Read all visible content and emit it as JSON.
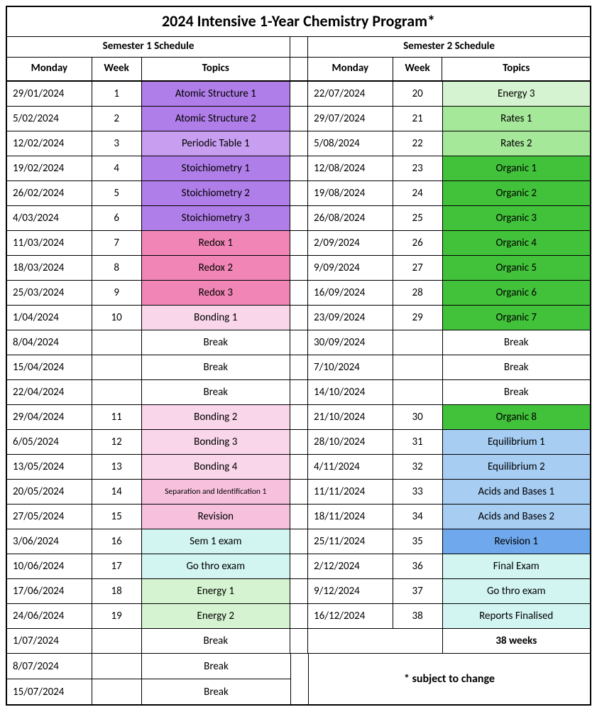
{
  "title": "2024 Intensive 1-Year Chemistry Program*",
  "sem1_header": "Semester 1 Schedule",
  "sem2_header": "Semester 2 Schedule",
  "columns": {
    "monday": "Monday",
    "week": "Week",
    "topics": "Topics"
  },
  "colors": {
    "purple_dark": "#b07ee8",
    "purple_med": "#c89ff0",
    "pink_dark": "#f186b6",
    "pink_med": "#f7c1de",
    "pink_light": "#f9d6ea",
    "cyan_light": "#d2f5f2",
    "green_pale": "#d5f3d0",
    "green_light": "#a6e89a",
    "green_med": "#6fd95a",
    "green_dark": "#42c23a",
    "blue_light": "#a7cdf3",
    "blue_med": "#6fa8ec",
    "white": "#ffffff"
  },
  "sem1": [
    {
      "date": "29/01/2024",
      "week": "1",
      "topic": "Atomic Structure 1",
      "color": "purple_dark"
    },
    {
      "date": "5/02/2024",
      "week": "2",
      "topic": "Atomic Structure  2",
      "color": "purple_dark"
    },
    {
      "date": "12/02/2024",
      "week": "3",
      "topic": "Periodic Table 1",
      "color": "purple_med"
    },
    {
      "date": "19/02/2024",
      "week": "4",
      "topic": "Stoichiometry 1",
      "color": "purple_dark"
    },
    {
      "date": "26/02/2024",
      "week": "5",
      "topic": "Stoichiometry 2",
      "color": "purple_dark"
    },
    {
      "date": "4/03/2024",
      "week": "6",
      "topic": "Stoichiometry 3",
      "color": "purple_dark"
    },
    {
      "date": "11/03/2024",
      "week": "7",
      "topic": "Redox 1",
      "color": "pink_dark"
    },
    {
      "date": "18/03/2024",
      "week": "8",
      "topic": "Redox 2",
      "color": "pink_dark"
    },
    {
      "date": "25/03/2024",
      "week": "9",
      "topic": "Redox 3",
      "color": "pink_dark"
    },
    {
      "date": "1/04/2024",
      "week": "10",
      "topic": "Bonding 1",
      "color": "pink_light"
    },
    {
      "date": "8/04/2024",
      "week": "",
      "topic": "Break",
      "color": "white"
    },
    {
      "date": "15/04/2024",
      "week": "",
      "topic": "Break",
      "color": "white"
    },
    {
      "date": "22/04/2024",
      "week": "",
      "topic": "Break",
      "color": "white"
    },
    {
      "date": "29/04/2024",
      "week": "11",
      "topic": "Bonding 2",
      "color": "pink_light"
    },
    {
      "date": "6/05/2024",
      "week": "12",
      "topic": "Bonding 3",
      "color": "pink_light"
    },
    {
      "date": "13/05/2024",
      "week": "13",
      "topic": "Bonding 4",
      "color": "pink_light"
    },
    {
      "date": "20/05/2024",
      "week": "14",
      "topic": "Separation and Identification 1",
      "color": "pink_med",
      "small": true
    },
    {
      "date": "27/05/2024",
      "week": "15",
      "topic": "Revision",
      "color": "pink_med"
    },
    {
      "date": "3/06/2024",
      "week": "16",
      "topic": "Sem 1 exam",
      "color": "cyan_light"
    },
    {
      "date": "10/06/2024",
      "week": "17",
      "topic": "Go thro exam",
      "color": "cyan_light"
    },
    {
      "date": "17/06/2024",
      "week": "18",
      "topic": "Energy 1",
      "color": "green_pale"
    },
    {
      "date": "24/06/2024",
      "week": "19",
      "topic": "Energy 2",
      "color": "green_pale"
    },
    {
      "date": "1/07/2024",
      "week": "",
      "topic": "Break",
      "color": "white"
    },
    {
      "date": "8/07/2024",
      "week": "",
      "topic": "Break",
      "color": "white"
    },
    {
      "date": "15/07/2024",
      "week": "",
      "topic": "Break",
      "color": "white"
    }
  ],
  "sem2": [
    {
      "date": "22/07/2024",
      "week": "20",
      "topic": "Energy 3",
      "color": "green_pale"
    },
    {
      "date": "29/07/2024",
      "week": "21",
      "topic": "Rates 1",
      "color": "green_light"
    },
    {
      "date": "5/08/2024",
      "week": "22",
      "topic": "Rates 2",
      "color": "green_light"
    },
    {
      "date": "12/08/2024",
      "week": "23",
      "topic": "Organic 1",
      "color": "green_dark"
    },
    {
      "date": "19/08/2024",
      "week": "24",
      "topic": "Organic 2",
      "color": "green_dark"
    },
    {
      "date": "26/08/2024",
      "week": "25",
      "topic": "Organic 3",
      "color": "green_dark"
    },
    {
      "date": "2/09/2024",
      "week": "26",
      "topic": "Organic 4",
      "color": "green_dark"
    },
    {
      "date": "9/09/2024",
      "week": "27",
      "topic": "Organic 5",
      "color": "green_dark"
    },
    {
      "date": "16/09/2024",
      "week": "28",
      "topic": "Organic 6",
      "color": "green_dark"
    },
    {
      "date": "23/09/2024",
      "week": "29",
      "topic": "Organic 7",
      "color": "green_dark"
    },
    {
      "date": "30/09/2024",
      "week": "",
      "topic": "Break",
      "color": "white"
    },
    {
      "date": "7/10/2024",
      "week": "",
      "topic": "Break",
      "color": "white"
    },
    {
      "date": "14/10/2024",
      "week": "",
      "topic": "Break",
      "color": "white"
    },
    {
      "date": "21/10/2024",
      "week": "30",
      "topic": "Organic 8",
      "color": "green_dark"
    },
    {
      "date": "28/10/2024",
      "week": "31",
      "topic": "Equilibrium 1",
      "color": "blue_light"
    },
    {
      "date": "4/11/2024",
      "week": "32",
      "topic": "Equilibrium 2",
      "color": "blue_light"
    },
    {
      "date": "11/11/2024",
      "week": "33",
      "topic": "Acids and Bases 1",
      "color": "blue_light"
    },
    {
      "date": "18/11/2024",
      "week": "34",
      "topic": "Acids and Bases 2",
      "color": "blue_light"
    },
    {
      "date": "25/11/2024",
      "week": "35",
      "topic": "Revision 1",
      "color": "blue_med"
    },
    {
      "date": "2/12/2024",
      "week": "36",
      "topic": "Final Exam",
      "color": "cyan_light"
    },
    {
      "date": "9/12/2024",
      "week": "37",
      "topic": "Go thro exam",
      "color": "cyan_light"
    },
    {
      "date": "16/12/2024",
      "week": "38",
      "topic": "Reports Finalised",
      "color": "cyan_light"
    }
  ],
  "total_label": "38 weeks",
  "footer_note": "* subject to change"
}
